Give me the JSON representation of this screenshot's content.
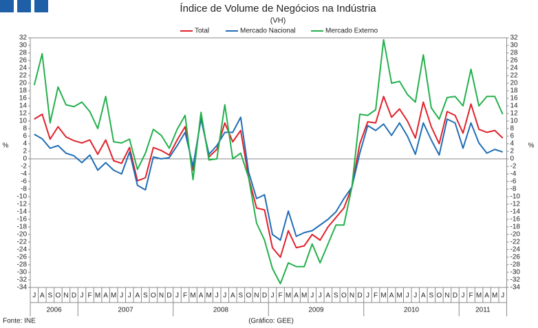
{
  "chart_data": {
    "type": "line",
    "title": "Índice de Volume de Negócios na Indústria",
    "subtitle": "(VH)",
    "ylabel": "%",
    "source": "Fonte: INE",
    "credit": "(Gráfico: GEE)",
    "categories": [
      "J",
      "A",
      "S",
      "O",
      "N",
      "D",
      "J",
      "F",
      "M",
      "A",
      "M",
      "J",
      "J",
      "A",
      "S",
      "O",
      "N",
      "D",
      "J",
      "F",
      "M",
      "A",
      "M",
      "J",
      "J",
      "A",
      "S",
      "O",
      "N",
      "D",
      "J",
      "F",
      "M",
      "A",
      "M",
      "J",
      "J",
      "A",
      "S",
      "O",
      "N",
      "D",
      "J",
      "F",
      "M",
      "A",
      "M",
      "J",
      "J",
      "A",
      "S",
      "O",
      "N",
      "D",
      "J",
      "F",
      "M",
      "A",
      "M",
      "J"
    ],
    "years": [
      "2006",
      "2007",
      "2008",
      "2009",
      "2010",
      "2011"
    ],
    "series": [
      {
        "name": "Total",
        "color": "#e0202a",
        "values": [
          10.5,
          11.8,
          5.2,
          8.5,
          5.8,
          4.8,
          4.2,
          5,
          1.2,
          5,
          -0.5,
          -1.2,
          3,
          -5.8,
          -5,
          3,
          2.2,
          1,
          5,
          8.5,
          -3,
          11,
          0.5,
          2.5,
          9.5,
          4.5,
          7.5,
          -5,
          -13,
          -13.5,
          -23.5,
          -26,
          -19,
          -23.5,
          -23,
          -20,
          -21.5,
          -18,
          -15.5,
          -13,
          -7.5,
          4,
          9.8,
          9.5,
          16.5,
          11,
          13.2,
          10,
          5.5,
          15,
          8.5,
          4,
          12.5,
          11.5,
          6.8,
          14.5,
          7.8,
          7,
          7.5,
          5.5
        ]
      },
      {
        "name": "Mercado Nacional",
        "color": "#1f6db5",
        "values": [
          6.5,
          5.3,
          2.8,
          3.5,
          1.5,
          0.8,
          -1,
          1,
          -3,
          -1,
          -3,
          -4,
          1.8,
          -7,
          -8.2,
          0.5,
          0,
          0.3,
          3.5,
          7,
          -2,
          10.5,
          1.2,
          3.5,
          7,
          7,
          11,
          -3.5,
          -10.5,
          -9.5,
          -20,
          -21.5,
          -13.8,
          -20.5,
          -19.5,
          -19,
          -17.5,
          -16,
          -14,
          -10.5,
          -7.5,
          1.5,
          8.8,
          7.5,
          9.2,
          6.2,
          9.5,
          6,
          1.2,
          9.5,
          5,
          1,
          10.5,
          9.5,
          2.8,
          9.5,
          4.2,
          1.5,
          2.5,
          1.8
        ]
      },
      {
        "name": "Mercado Externo",
        "color": "#22b04b",
        "values": [
          19.5,
          27.8,
          9.5,
          19,
          14.3,
          13.8,
          15,
          12.5,
          8,
          16.5,
          4.5,
          4.2,
          5.2,
          -2.8,
          1.5,
          7.8,
          6.2,
          2.8,
          7.8,
          11.5,
          -5.5,
          12.3,
          -0.3,
          0,
          14.3,
          0,
          1.5,
          -5,
          -17,
          -21.5,
          -29,
          -33,
          -27.5,
          -28.5,
          -28.5,
          -22.5,
          -27.5,
          -22.5,
          -17.5,
          -17.5,
          -7.5,
          11.8,
          11.5,
          13,
          31.5,
          20,
          20.5,
          17,
          15,
          27.5,
          13.5,
          10.5,
          16.2,
          16.5,
          14,
          23.7,
          14,
          16.5,
          16.5,
          11.8
        ]
      }
    ],
    "ylim": [
      -34,
      32
    ],
    "yticks": [
      -34,
      -32,
      -30,
      -28,
      -26,
      -24,
      -22,
      -20,
      -18,
      -16,
      -14,
      -12,
      -10,
      -8,
      -6,
      -4,
      -2,
      0,
      2,
      4,
      6,
      8,
      10,
      12,
      14,
      16,
      18,
      20,
      22,
      24,
      26,
      28,
      30,
      32
    ]
  }
}
